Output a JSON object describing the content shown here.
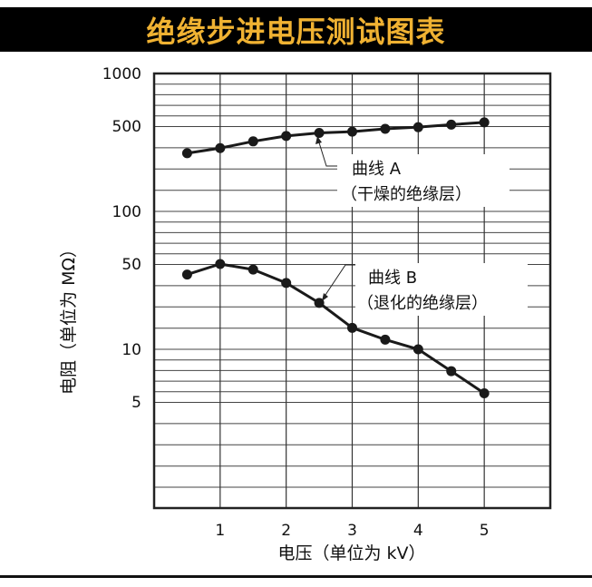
{
  "title": "绝缘步进电压测试图表",
  "colors": {
    "title_bar": "#000000",
    "title_text": "#f0b232",
    "line": "#1a1a1a",
    "grid": "#333333"
  },
  "chart_data": {
    "type": "line",
    "title": "绝缘步进电压测试图表",
    "xlabel": "电压（单位为 kV）",
    "ylabel": "电阻（单位为 MΩ）",
    "xlim": [
      0,
      6
    ],
    "ylim": [
      0.7,
      1000
    ],
    "yscale": "log",
    "grid": true,
    "x_ticks": [
      1,
      2,
      3,
      4,
      5
    ],
    "x_tick_labels": [
      "1",
      "2",
      "3",
      "4",
      "5"
    ],
    "y_ticks": [
      1000,
      500,
      100,
      50,
      10,
      5
    ],
    "y_tick_labels": [
      "1000",
      "500",
      "100",
      "50",
      "10",
      "5"
    ],
    "x": [
      0.5,
      1,
      1.5,
      2,
      2.5,
      3,
      3.5,
      4,
      4.5,
      5
    ],
    "series": [
      {
        "name": "曲线 A",
        "annotation": "（干燥的绝缘层）",
        "values": [
          300,
          330,
          375,
          415,
          440,
          450,
          475,
          490,
          510,
          525
        ]
      },
      {
        "name": "曲线 B",
        "annotation": "（退化的绝缘层）",
        "values": [
          41,
          50,
          45,
          35,
          24,
          15,
          12,
          10,
          7.5,
          5.6
        ]
      }
    ]
  }
}
